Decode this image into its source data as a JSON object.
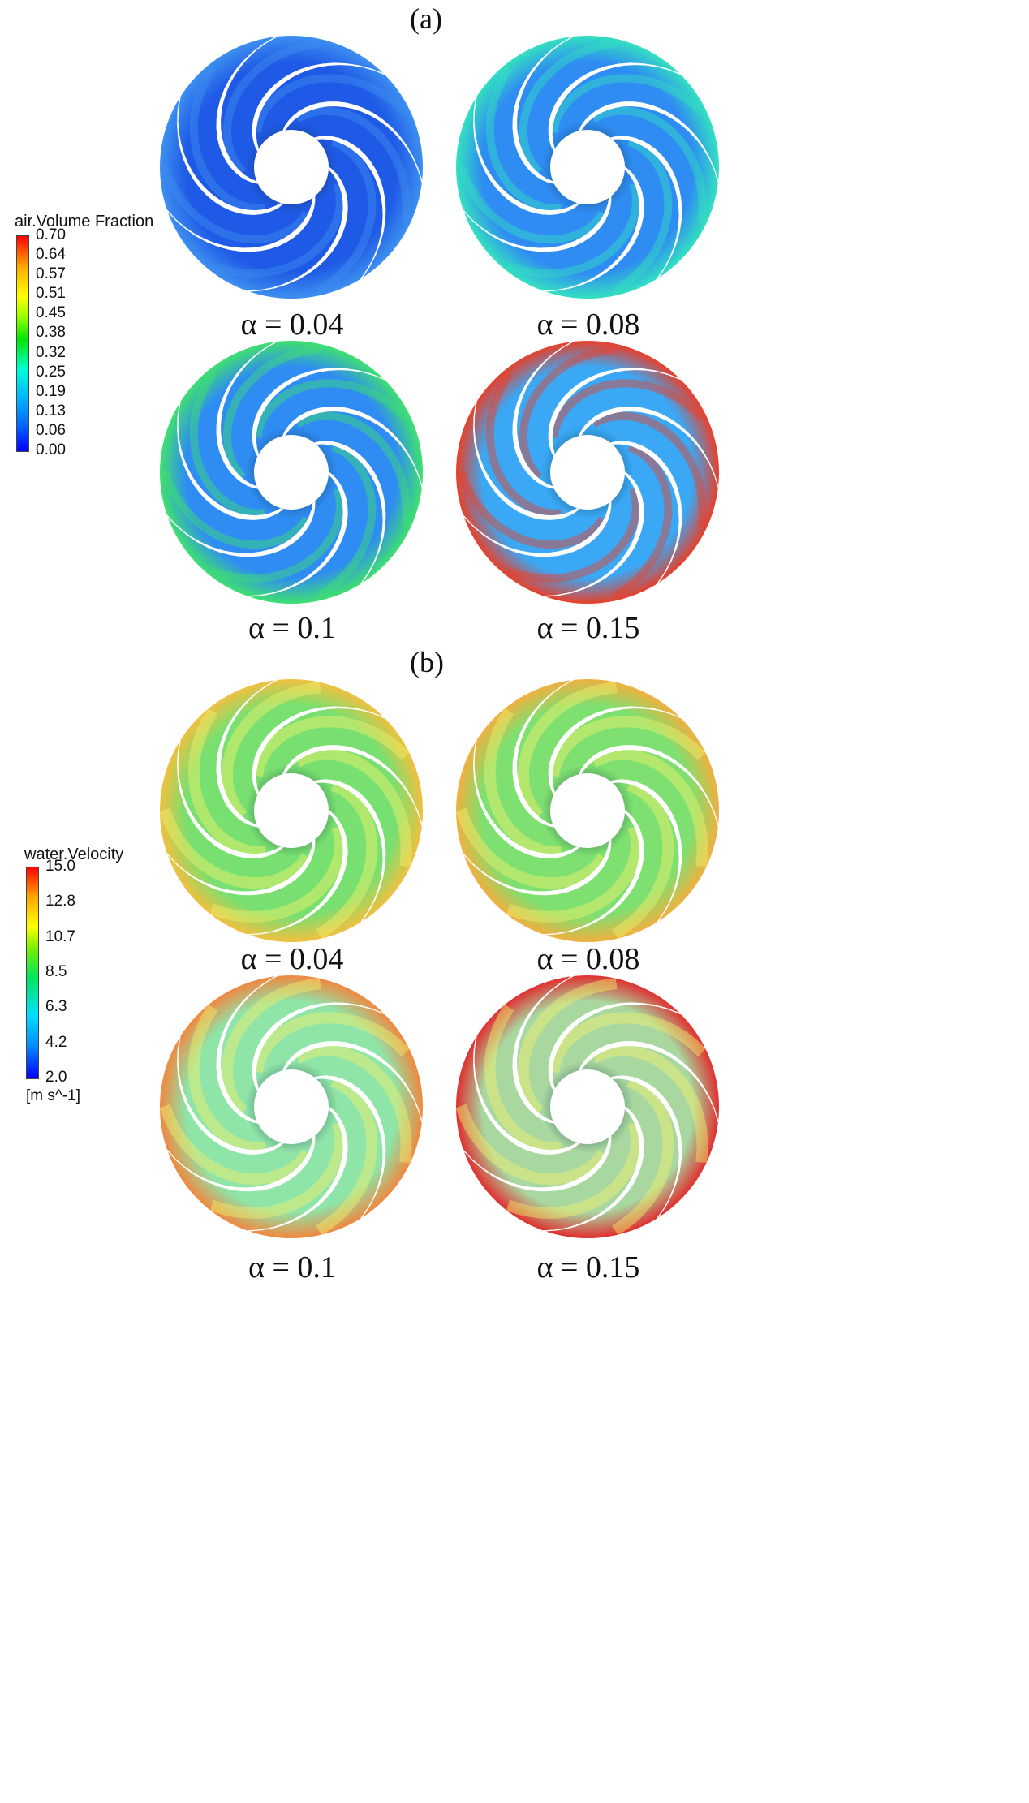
{
  "panel_a": {
    "label": "(a)",
    "legend": {
      "title": "air.Volume Fraction",
      "ticks": [
        "0.70",
        "0.64",
        "0.57",
        "0.51",
        "0.45",
        "0.38",
        "0.32",
        "0.25",
        "0.19",
        "0.13",
        "0.06",
        "0.00"
      ]
    },
    "captions": [
      "α = 0.04",
      "α = 0.08",
      "α = 0.1",
      "α = 0.15"
    ]
  },
  "panel_b": {
    "label": "(b)",
    "legend": {
      "title": "water.Velocity",
      "ticks": [
        "15.0",
        "12.8",
        "10.7",
        "8.5",
        "6.3",
        "4.2",
        "2.0"
      ],
      "unit": "[m s^-1]"
    },
    "captions": [
      "α = 0.04",
      "α = 0.08",
      "α = 0.1",
      "α = 0.15"
    ]
  },
  "colors": {
    "a_fill": [
      "#1a4fe0",
      "#2a8cf0",
      "#35a6f2",
      "#e4482a"
    ],
    "b_fill": [
      "#7ee35a",
      "#88e35a",
      "#a4e8a0",
      "#f0c050"
    ]
  }
}
